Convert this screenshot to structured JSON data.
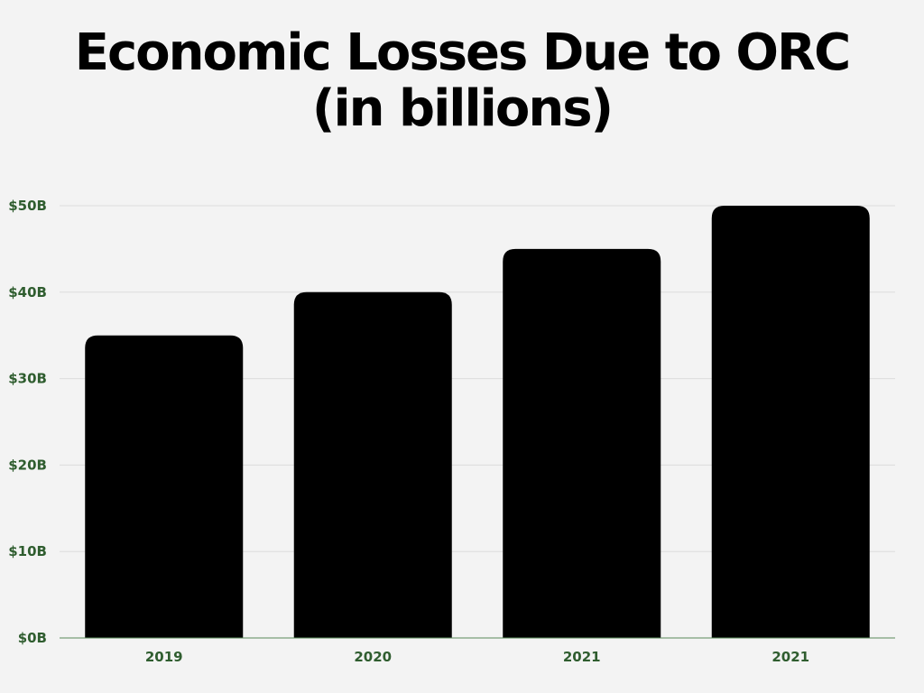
{
  "colors": {
    "background": "#f3f3f3",
    "bar": "#000000",
    "tick_label": "#2f5d2f",
    "gridline": "#dcdcdc",
    "axis_line": "#5a8a5a"
  },
  "chart_data": {
    "type": "bar",
    "title_line1": "Economic Losses Due to ORC",
    "title_line2": "(in billions)",
    "categories": [
      "2019",
      "2020",
      "2021",
      "2021"
    ],
    "values": [
      35,
      40,
      45,
      50
    ],
    "ylim": [
      0,
      50
    ],
    "yticks": [
      0,
      10,
      20,
      30,
      40,
      50
    ],
    "ytick_labels": [
      "$0B",
      "$10B",
      "$20B",
      "$30B",
      "$40B",
      "$50B"
    ],
    "xlabel": "",
    "ylabel": "",
    "grid": true,
    "legend": "none"
  }
}
